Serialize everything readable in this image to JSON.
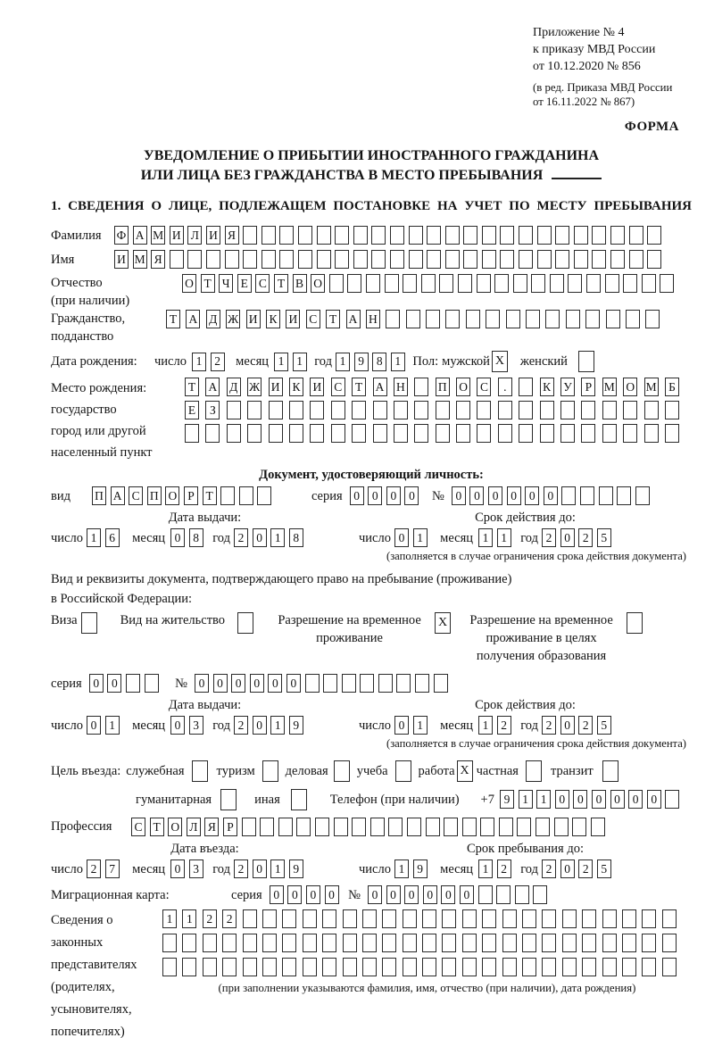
{
  "header": {
    "lines": [
      "Приложение № 4",
      "к приказу МВД России",
      "от 10.12.2020 № 856"
    ],
    "amendment": [
      "(в ред. Приказа МВД России",
      "от 16.11.2022 № 867)"
    ],
    "form_label": "ФОРМА"
  },
  "title": {
    "line1": "УВЕДОМЛЕНИЕ О ПРИБЫТИИ ИНОСТРАННОГО ГРАЖДАНИНА",
    "line2": "ИЛИ ЛИЦА БЕЗ ГРАЖДАНСТВА В МЕСТО ПРЕБЫВАНИЯ"
  },
  "section1_heading": "1. СВЕДЕНИЯ О ЛИЦЕ, ПОДЛЕЖАЩЕМ ПОСТАНОВКЕ НА УЧЕТ ПО МЕСТУ ПРЕБЫВАНИЯ",
  "date_labels": {
    "day": "число",
    "month": "месяц",
    "year": "год"
  },
  "fields": {
    "surname": {
      "label": "Фамилия",
      "value": "ФАМИЛИЯ",
      "cells": 30
    },
    "name": {
      "label": "Имя",
      "value": "ИМЯ",
      "cells": 30
    },
    "patronymic": {
      "label": "Отчество",
      "sublabel": "(при наличии)",
      "value": "ОТЧЕСТВО",
      "cells": 27
    },
    "citizenship": {
      "label": "Гражданство,",
      "sublabel": "подданство",
      "value": "ТАДЖИКИСТАН",
      "cells": 25
    },
    "birth_date": {
      "label": "Дата рождения:",
      "day": {
        "value": "12",
        "cells": 2
      },
      "month": {
        "value": "11",
        "cells": 2
      },
      "year": {
        "value": "1981",
        "cells": 4
      }
    },
    "sex": {
      "label": "Пол:",
      "male_label": "мужской",
      "male_checked": "X",
      "female_label": "женский",
      "female_checked": ""
    },
    "birth_place": {
      "label": "Место рождения:",
      "sublabels": [
        "государство",
        "город или другой",
        "населенный пункт"
      ],
      "row1": {
        "value": "ТАДЖИКИСТАН ПОС. КУРМОМБ",
        "cells": 24
      },
      "row2": {
        "value": "ЕЗ",
        "cells": 24
      },
      "row3": {
        "value": "",
        "cells": 24
      }
    }
  },
  "identity_doc": {
    "heading": "Документ, удостоверяющий личность:",
    "type_label": "вид",
    "type": {
      "value": "ПАСПОРТ",
      "cells": 10
    },
    "series_label": "серия",
    "series": {
      "value": "0000",
      "cells": 4
    },
    "number_label": "№",
    "number": {
      "value": "000000",
      "cells": 11
    },
    "issue_heading": "Дата выдачи:",
    "issue": {
      "day": {
        "value": "16",
        "cells": 2
      },
      "month": {
        "value": "08",
        "cells": 2
      },
      "year": {
        "value": "2018",
        "cells": 4
      }
    },
    "valid_heading": "Срок действия до:",
    "valid": {
      "day": {
        "value": "01",
        "cells": 2
      },
      "month": {
        "value": "11",
        "cells": 2
      },
      "year": {
        "value": "2025",
        "cells": 4
      }
    },
    "note": "(заполняется в случае ограничения срока действия документа)"
  },
  "residence_doc": {
    "intro_line1": "Вид и реквизиты документа, подтверждающего право на пребывание (проживание)",
    "intro_line2": "в Российской Федерации:",
    "options": [
      {
        "label": "Виза",
        "checked": ""
      },
      {
        "label": "Вид на жительство",
        "checked": ""
      },
      {
        "label": "Разрешение на временное проживание",
        "checked": "X"
      },
      {
        "label": "Разрешение на временное проживание в целях получения образования",
        "checked": ""
      }
    ],
    "series_label": "серия",
    "series": {
      "value": "00",
      "cells": 4
    },
    "number_label": "№",
    "number": {
      "value": "000000",
      "cells": 14
    },
    "issue_heading": "Дата выдачи:",
    "issue": {
      "day": {
        "value": "01",
        "cells": 2
      },
      "month": {
        "value": "03",
        "cells": 2
      },
      "year": {
        "value": "2019",
        "cells": 4
      }
    },
    "valid_heading": "Срок действия до:",
    "valid": {
      "day": {
        "value": "01",
        "cells": 2
      },
      "month": {
        "value": "12",
        "cells": 2
      },
      "year": {
        "value": "2025",
        "cells": 4
      }
    },
    "note": "(заполняется в случае ограничения срока действия документа)"
  },
  "visit": {
    "label": "Цель въезда:",
    "options": [
      {
        "label": "служебная",
        "checked": ""
      },
      {
        "label": "туризм",
        "checked": ""
      },
      {
        "label": "деловая",
        "checked": ""
      },
      {
        "label": "учеба",
        "checked": ""
      },
      {
        "label": "работа",
        "checked": "X"
      },
      {
        "label": "частная",
        "checked": ""
      },
      {
        "label": "транзит",
        "checked": ""
      }
    ],
    "options2": [
      {
        "label": "гуманитарная",
        "checked": ""
      },
      {
        "label": "иная",
        "checked": ""
      }
    ],
    "phone_label": "Телефон (при наличии)",
    "phone_prefix": "+7",
    "phone": {
      "value": "911000000",
      "cells": 10
    },
    "profession_label": "Профессия",
    "profession": {
      "value": "СТОЛЯР",
      "cells": 26
    }
  },
  "entry": {
    "entry_heading": "Дата въезда:",
    "entry_date": {
      "day": {
        "value": "27",
        "cells": 2
      },
      "month": {
        "value": "03",
        "cells": 2
      },
      "year": {
        "value": "2019",
        "cells": 4
      }
    },
    "stay_heading": "Срок пребывания до:",
    "stay_until": {
      "day": {
        "value": "19",
        "cells": 2
      },
      "month": {
        "value": "12",
        "cells": 2
      },
      "year": {
        "value": "2025",
        "cells": 4
      }
    }
  },
  "migration_card": {
    "label": "Миграционная карта:",
    "series_label": "серия",
    "series": {
      "value": "0000",
      "cells": 4
    },
    "number_label": "№",
    "number": {
      "value": "000000",
      "cells": 10
    }
  },
  "representatives": {
    "label_lines": [
      "Сведения о",
      "законных",
      "представителях",
      "(родителях,",
      "усыновителях,",
      "попечителях)"
    ],
    "row1": {
      "value": "1122",
      "cells": 26
    },
    "row2": {
      "value": "",
      "cells": 26
    },
    "row3": {
      "value": "",
      "cells": 26
    },
    "note": "(при заполнении указываются фамилия, имя, отчество (при наличии), дата рождения)"
  }
}
